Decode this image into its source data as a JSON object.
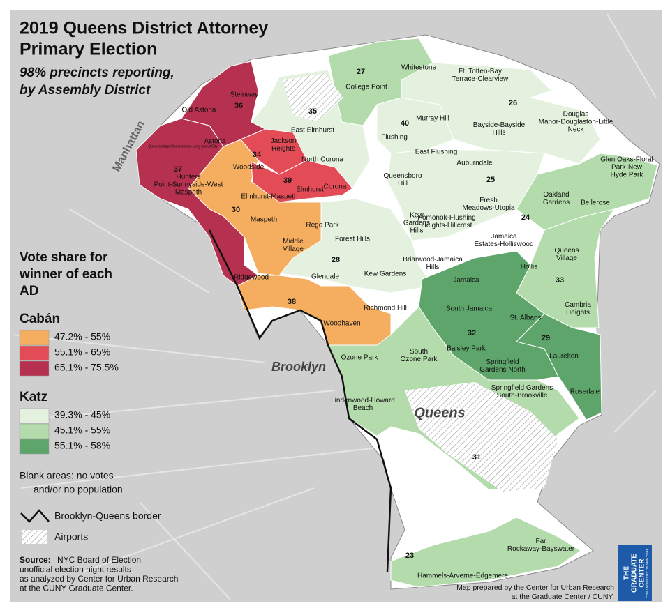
{
  "title_lines": [
    "2019 Queens District Attorney",
    "Primary Election"
  ],
  "subtitle_lines": [
    "98% precincts reporting,",
    "by Assembly District"
  ],
  "legend": {
    "title_lines": [
      "Vote share for",
      "winner of each",
      "AD"
    ],
    "groups": [
      {
        "name": "Cabán",
        "items": [
          {
            "label": "47.2% - 55%",
            "color": "#f5ad5f"
          },
          {
            "label": "55.1% - 65%",
            "color": "#e34c57"
          },
          {
            "label": "65.1% - 75.5%",
            "color": "#b6304f"
          }
        ]
      },
      {
        "name": "Katz",
        "items": [
          {
            "label": "39.3% - 45%",
            "color": "#e3f1de"
          },
          {
            "label": "45.1% - 55%",
            "color": "#b3dbab"
          },
          {
            "label": "55.1% - 58%",
            "color": "#5ea56c"
          }
        ]
      }
    ],
    "blank_lines": [
      "Blank areas: no votes",
      "and/or no population"
    ],
    "border": "Brooklyn-Queens border",
    "airports": "Airports"
  },
  "source": {
    "label": "Source:",
    "lines": [
      "NYC Board of Election",
      "unofficial election night results",
      "as analyzed by Center for Urban Research",
      "at the CUNY Graduate Center."
    ]
  },
  "credit_lines": [
    "Map prepared by the Center for Urban Research",
    "at the Graduate Center / CUNY."
  ],
  "logo_lines": [
    "THE",
    "GRADUATE",
    "CENTER"
  ],
  "logo_sub": "CITY UNIVERSITY OF NEW YORK",
  "boroughs": [
    "Manhattan",
    "Brooklyn",
    "Queens"
  ],
  "districts": [
    {
      "number": "28",
      "color": "#e3f1de"
    },
    {
      "number": "35",
      "color": "#e3f1de"
    },
    {
      "number": "27",
      "color": "#b3dbab"
    },
    {
      "number": "40",
      "color": "#e3f1de"
    },
    {
      "number": "26",
      "color": "#e3f1de"
    },
    {
      "number": "25",
      "color": "#e3f1de"
    },
    {
      "number": "24",
      "color": "#b3dbab"
    },
    {
      "number": "33",
      "color": "#b3dbab"
    },
    {
      "number": "32",
      "color": "#5ea56c"
    },
    {
      "number": "29",
      "color": "#5ea56c"
    },
    {
      "number": "31",
      "color": "#b3dbab"
    },
    {
      "number": "23",
      "color": "#b3dbab"
    },
    {
      "number": "30",
      "color": "#f5ad5f"
    },
    {
      "number": "37",
      "color": "#b6304f"
    },
    {
      "number": "36",
      "color": "#b6304f"
    },
    {
      "number": "34",
      "color": "#e34c57"
    },
    {
      "number": "39",
      "color": "#e34c57"
    },
    {
      "number": "38",
      "color": "#f5ad5f"
    }
  ],
  "neighborhoods": [
    {
      "lines": [
        "Whitestone"
      ]
    },
    {
      "lines": [
        "Ft. Totten-Bay",
        "Terrace-Clearview"
      ]
    },
    {
      "lines": [
        "College Point"
      ]
    },
    {
      "lines": [
        "Steinway"
      ]
    },
    {
      "lines": [
        "Old Astoria"
      ]
    },
    {
      "lines": [
        "Murray Hill"
      ]
    },
    {
      "lines": [
        "Flushing"
      ]
    },
    {
      "lines": [
        "Bayside-Bayside",
        "Hills"
      ]
    },
    {
      "lines": [
        "Douglas",
        "Manor-Douglaston-Little",
        "Neck"
      ]
    },
    {
      "lines": [
        "East Elmhurst"
      ]
    },
    {
      "lines": [
        "Jackson",
        "Heights"
      ]
    },
    {
      "lines": [
        "Astoria"
      ]
    },
    {
      "lines": [
        "Queensbridge-Ravenswood-Long Island City"
      ]
    },
    {
      "lines": [
        "Woodside"
      ]
    },
    {
      "lines": [
        "North Corona"
      ]
    },
    {
      "lines": [
        "East Flushing"
      ]
    },
    {
      "lines": [
        "Auburndale"
      ]
    },
    {
      "lines": [
        "Glen Oaks-Floral",
        "Park-New",
        "Hyde Park"
      ]
    },
    {
      "lines": [
        "Hunters",
        "Point-Sunnyside-West",
        "Maspeth"
      ]
    },
    {
      "lines": [
        "Elmhurst-Maspeth"
      ]
    },
    {
      "lines": [
        "Elmhurst"
      ]
    },
    {
      "lines": [
        "Corona"
      ]
    },
    {
      "lines": [
        "Queensboro",
        "Hill"
      ]
    },
    {
      "lines": [
        "Fresh",
        "Meadows-Utopia"
      ]
    },
    {
      "lines": [
        "Oakland",
        "Gardens"
      ]
    },
    {
      "lines": [
        "Bellerose"
      ]
    },
    {
      "lines": [
        "Maspeth"
      ]
    },
    {
      "lines": [
        "Rego Park"
      ]
    },
    {
      "lines": [
        "Kew",
        "Gardens",
        "Hills"
      ]
    },
    {
      "lines": [
        "Pomonok-Flushing",
        "Heights-Hillcrest"
      ]
    },
    {
      "lines": [
        "Forest Hills"
      ]
    },
    {
      "lines": [
        "Middle",
        "Village"
      ]
    },
    {
      "lines": [
        "Jamaica",
        "Estates-Holliswood"
      ]
    },
    {
      "lines": [
        "Queens",
        "Village"
      ]
    },
    {
      "lines": [
        "Briarwood-Jamaica",
        "Hills"
      ]
    },
    {
      "lines": [
        "Hollis"
      ]
    },
    {
      "lines": [
        "Ridgewood"
      ]
    },
    {
      "lines": [
        "Glendale"
      ]
    },
    {
      "lines": [
        "Kew Gardens"
      ]
    },
    {
      "lines": [
        "Jamaica"
      ]
    },
    {
      "lines": [
        "Richmond Hill"
      ]
    },
    {
      "lines": [
        "South Jamaica"
      ]
    },
    {
      "lines": [
        "Cambria",
        "Heights"
      ]
    },
    {
      "lines": [
        "St. Albans"
      ]
    },
    {
      "lines": [
        "Woodhaven"
      ]
    },
    {
      "lines": [
        "Laurelton"
      ]
    },
    {
      "lines": [
        "Baisley Park"
      ]
    },
    {
      "lines": [
        "Ozone Park"
      ]
    },
    {
      "lines": [
        "South",
        "Ozone Park"
      ]
    },
    {
      "lines": [
        "Springfield",
        "Gardens North"
      ]
    },
    {
      "lines": [
        "Springfield Gardens",
        "South-Brookville"
      ]
    },
    {
      "lines": [
        "Rosedale"
      ]
    },
    {
      "lines": [
        "Lindenwood-Howard",
        "Beach"
      ]
    },
    {
      "lines": [
        "Far",
        "Rockaway-Bayswater"
      ]
    },
    {
      "lines": [
        "Hammels-Arverne-Edgemere"
      ]
    }
  ]
}
